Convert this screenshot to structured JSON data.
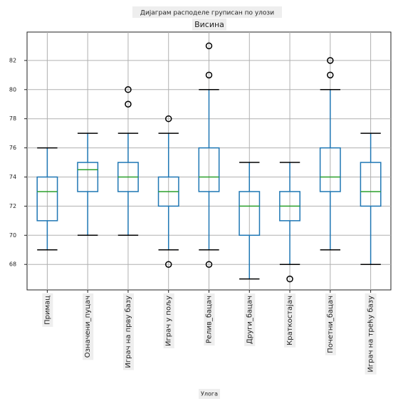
{
  "chart_data": {
    "type": "box",
    "title": "Дијаграм расподеле груписан по улози",
    "subtitle": "Висина",
    "x_label": "Улога",
    "categories": [
      "Примац",
      "Означени_пуцач",
      "Играч на прву базу",
      "Играч у пољу",
      "Релив_бацач",
      "Други_бацач",
      "Краткостајач",
      "Почетни_бацач",
      "Играч на трећу базу"
    ],
    "boxes": [
      {
        "whislo": 69,
        "q1": 71,
        "med": 73,
        "q3": 74,
        "whishi": 76,
        "fliers": []
      },
      {
        "whislo": 70,
        "q1": 73,
        "med": 74.5,
        "q3": 75,
        "whishi": 77,
        "fliers": []
      },
      {
        "whislo": 70,
        "q1": 73,
        "med": 74,
        "q3": 75,
        "whishi": 77,
        "fliers": [
          80,
          79
        ]
      },
      {
        "whislo": 69,
        "q1": 72,
        "med": 73,
        "q3": 74,
        "whishi": 77,
        "fliers": [
          78,
          68
        ]
      },
      {
        "whislo": 69,
        "q1": 73,
        "med": 74,
        "q3": 76,
        "whishi": 80,
        "fliers": [
          83,
          81,
          68
        ]
      },
      {
        "whislo": 67,
        "q1": 70,
        "med": 72,
        "q3": 73,
        "whishi": 75,
        "fliers": []
      },
      {
        "whislo": 68,
        "q1": 71,
        "med": 72,
        "q3": 73,
        "whishi": 75,
        "fliers": [
          67
        ]
      },
      {
        "whislo": 69,
        "q1": 73,
        "med": 74,
        "q3": 76,
        "whishi": 80,
        "fliers": [
          82,
          81
        ]
      },
      {
        "whislo": 68,
        "q1": 72,
        "med": 73,
        "q3": 75,
        "whishi": 77,
        "fliers": []
      }
    ],
    "box_color": "#1f77b4",
    "median_color": "#2ca02c",
    "ylim": [
      66.25,
      83.95
    ],
    "yticks": [
      68,
      70,
      72,
      74,
      76,
      78,
      80,
      82
    ],
    "grid": true
  }
}
